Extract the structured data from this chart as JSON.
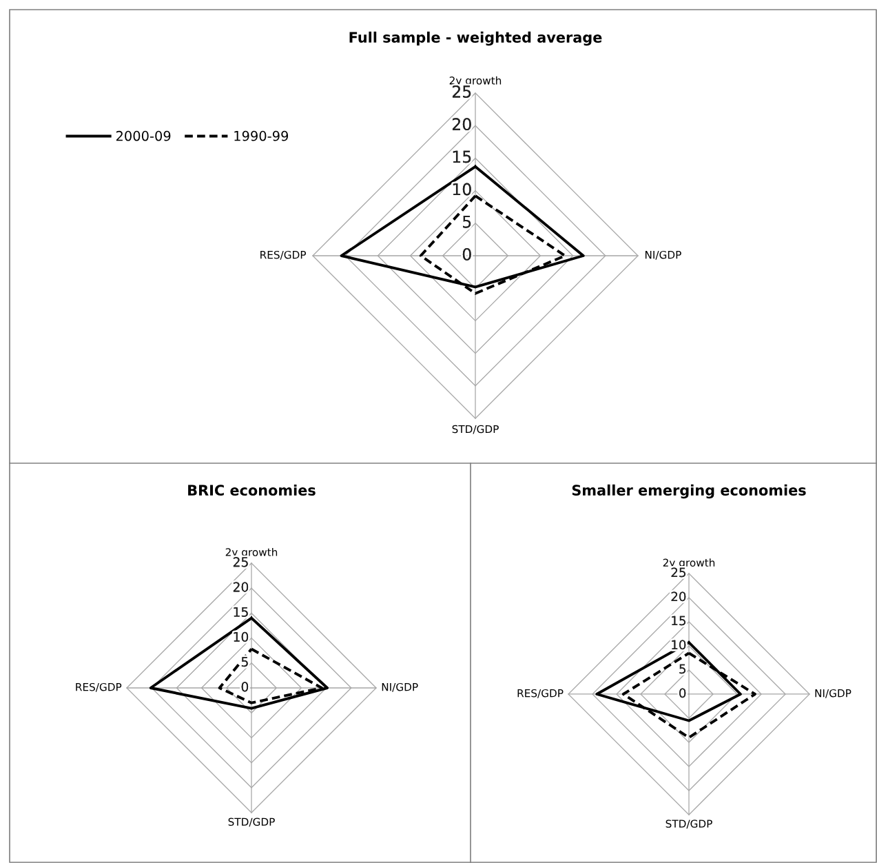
{
  "chart_data": [
    {
      "type": "radar",
      "title": "Full sample - weighted average",
      "categories": [
        "2y growth",
        "NI/GDP",
        "STD/GDP",
        "RES/GDP"
      ],
      "ylim": [
        0,
        25
      ],
      "yticks": [
        0,
        5,
        10,
        15,
        20,
        25
      ],
      "grid": true,
      "legend": "top left",
      "series": [
        {
          "name": "2000-09",
          "color": "#000000",
          "line_style": "solid",
          "values": [
            13.7,
            16.6,
            4.8,
            20.6
          ]
        },
        {
          "name": "1990-99",
          "color": "#000000",
          "line_style": "dashed",
          "values": [
            9.2,
            13.8,
            5.8,
            8.4
          ]
        }
      ]
    },
    {
      "type": "radar",
      "title": "BRIC economies",
      "categories": [
        "2y growth",
        "NI/GDP",
        "STD/GDP",
        "RES/GDP"
      ],
      "ylim": [
        0,
        25
      ],
      "yticks": [
        0,
        5,
        10,
        15,
        20,
        25
      ],
      "grid": true,
      "series": [
        {
          "color": "#000000",
          "line_style": "solid",
          "values": [
            14.0,
            15.2,
            4.1,
            20.2
          ]
        },
        {
          "color": "#000000",
          "line_style": "dashed",
          "values": [
            7.8,
            14.1,
            3.0,
            6.4
          ]
        }
      ]
    },
    {
      "type": "radar",
      "title": "Smaller emerging economies",
      "categories": [
        "2y growth",
        "NI/GDP",
        "STD/GDP",
        "RES/GDP"
      ],
      "ylim": [
        0,
        25
      ],
      "yticks": [
        0,
        5,
        10,
        15,
        20,
        25
      ],
      "grid": true,
      "series": [
        {
          "color": "#000000",
          "line_style": "solid",
          "values": [
            10.7,
            10.7,
            5.5,
            19.1
          ]
        },
        {
          "color": "#000000",
          "line_style": "dashed",
          "values": [
            8.5,
            13.7,
            9.0,
            13.6
          ]
        }
      ]
    }
  ]
}
